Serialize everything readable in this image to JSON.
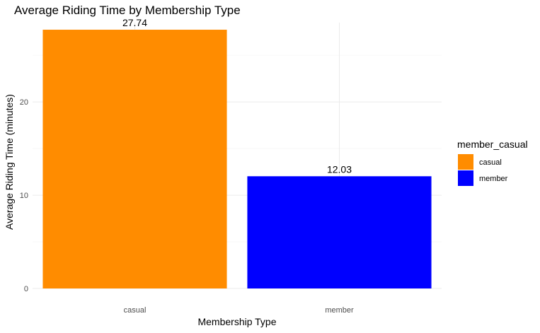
{
  "chart_data": {
    "type": "bar",
    "title": "Average Riding Time by Membership Type",
    "xlabel": "Membership Type",
    "ylabel": "Average Riding Time (minutes)",
    "categories": [
      "casual",
      "member"
    ],
    "values": [
      27.74,
      12.03
    ],
    "value_labels": [
      "27.74",
      "12.03"
    ],
    "colors": [
      "#ff8c00",
      "#0000ff"
    ],
    "ylim": [
      0,
      28.5
    ],
    "yticks": [
      0,
      10,
      20
    ],
    "ytick_labels": [
      "0",
      "10",
      "20"
    ],
    "grid": true,
    "legend": {
      "title": "member_casual",
      "position": "right",
      "entries": [
        {
          "label": "casual",
          "color": "#ff8c00"
        },
        {
          "label": "member",
          "color": "#0000ff"
        }
      ]
    }
  }
}
